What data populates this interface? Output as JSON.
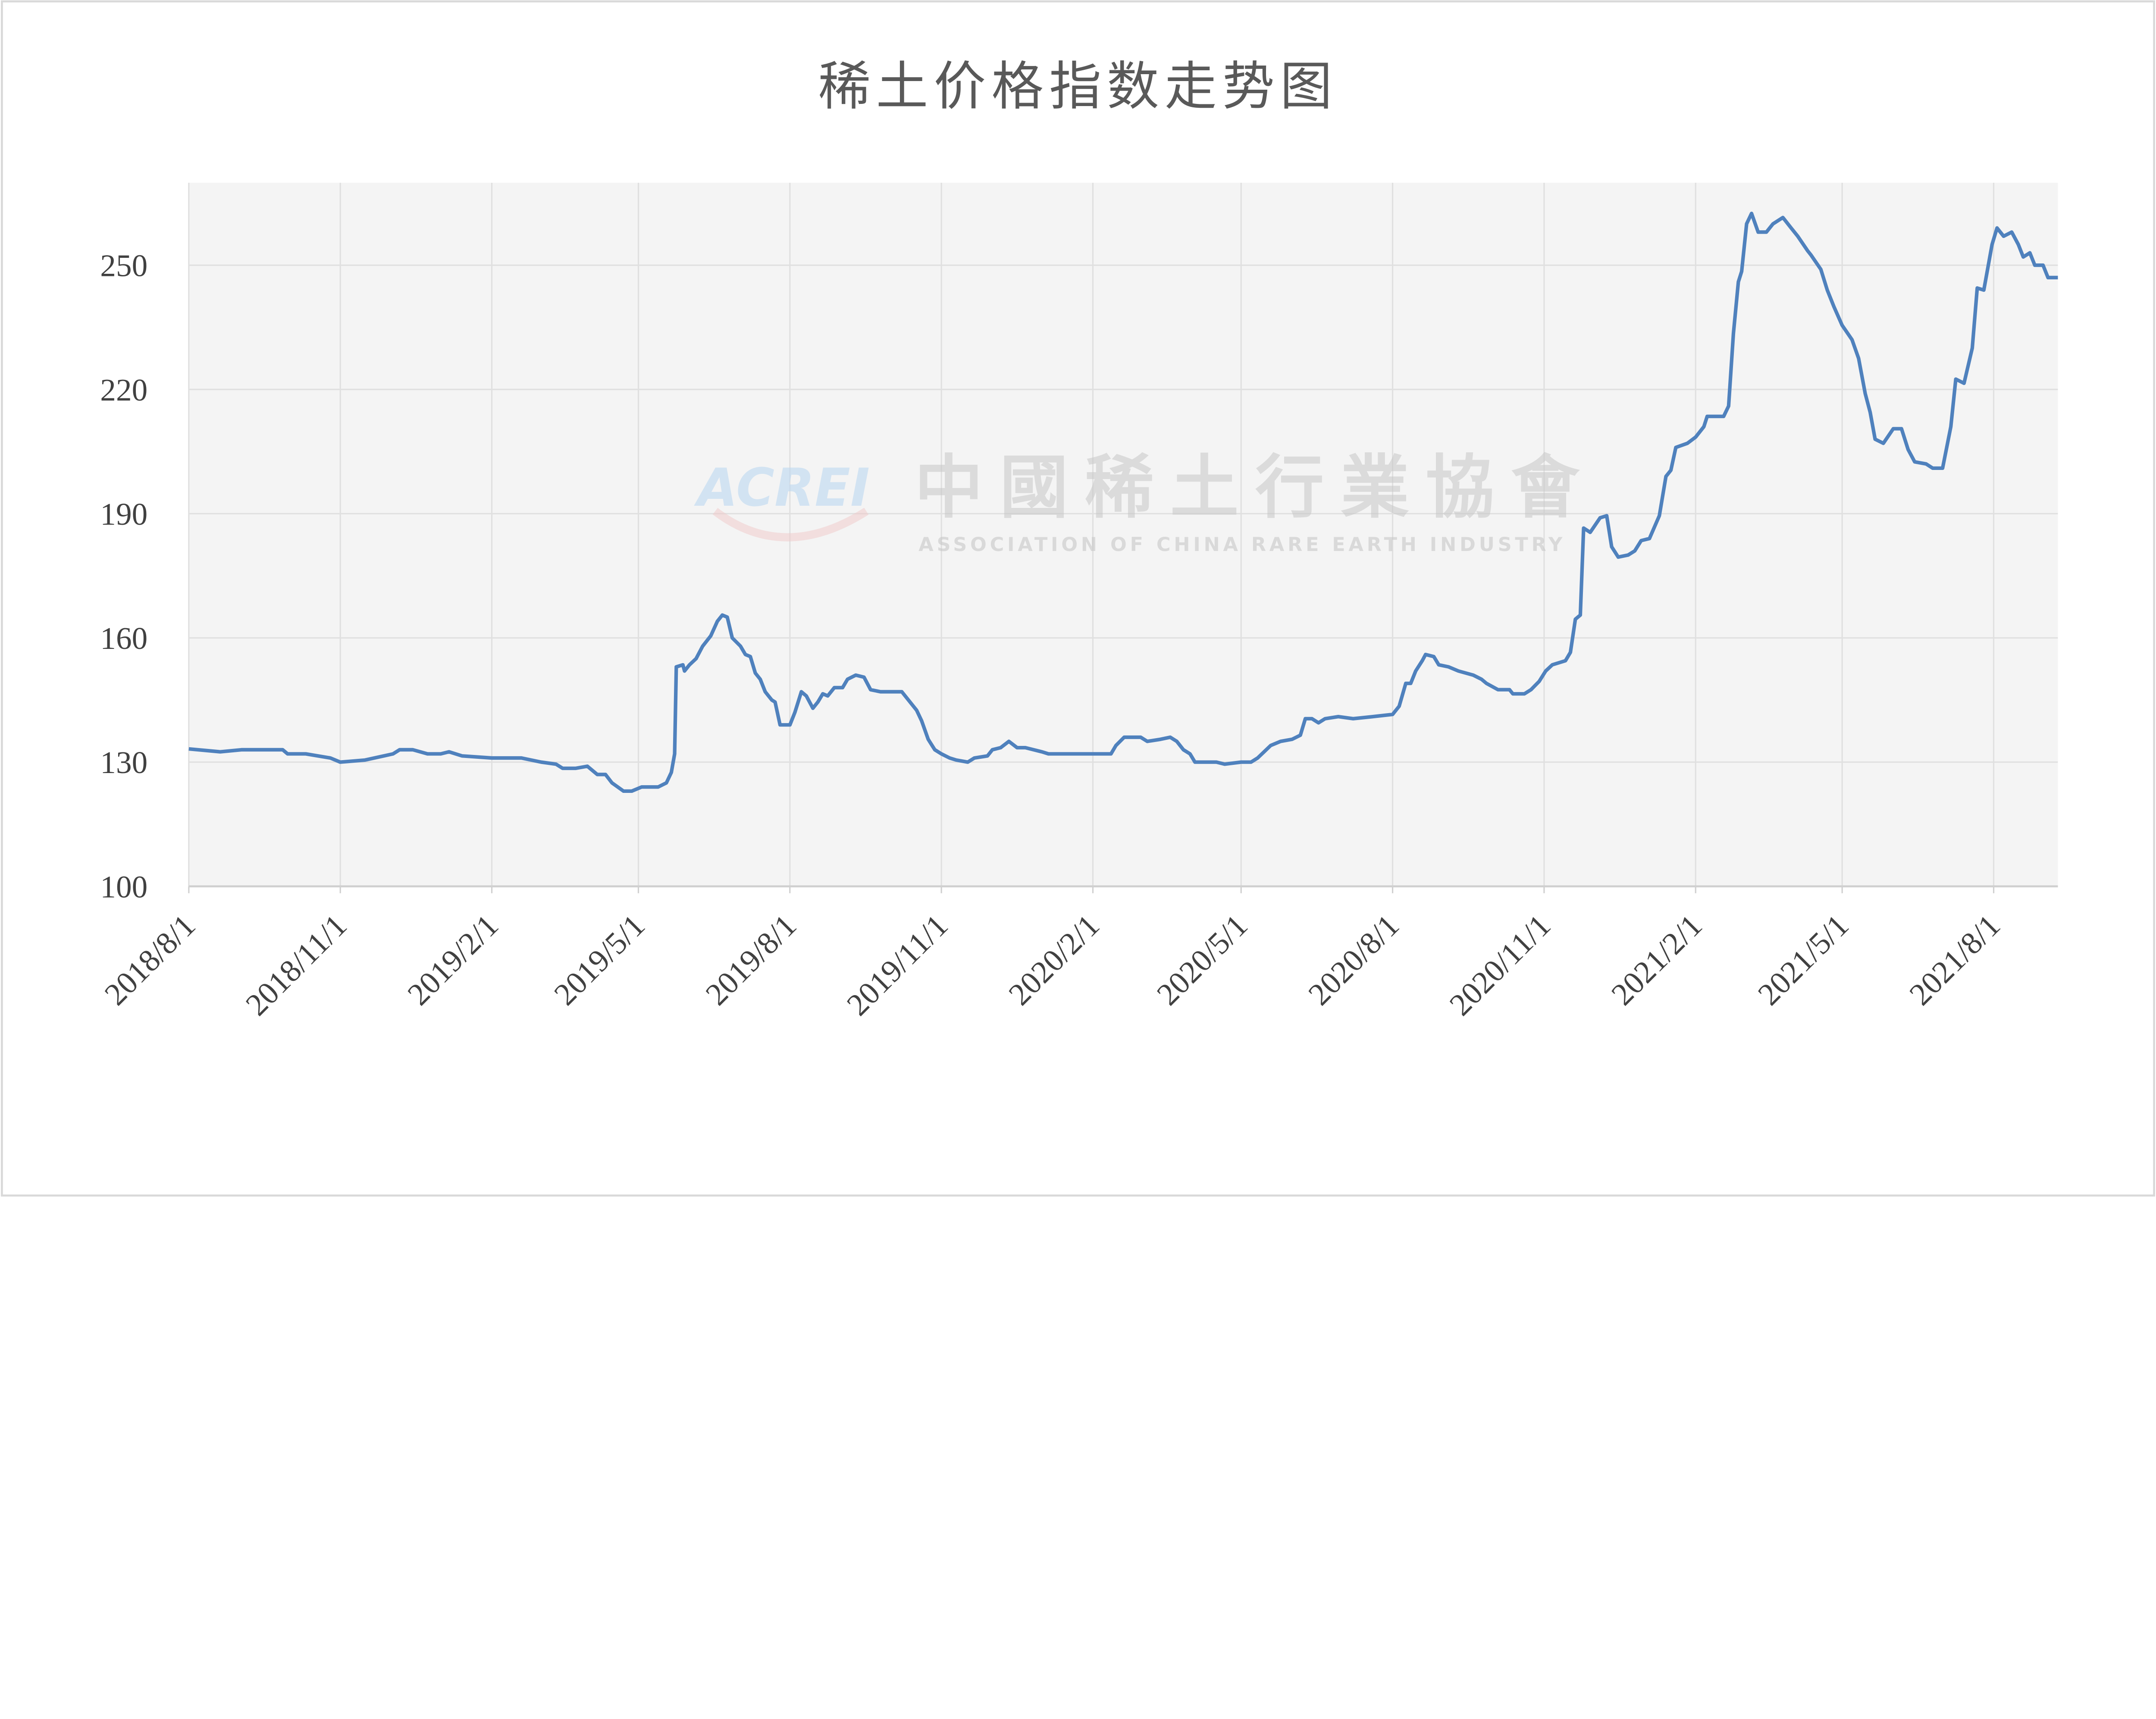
{
  "chart_data": {
    "type": "line",
    "title": "稀土价格指数走势图",
    "xlabel": "",
    "ylabel": "",
    "ylim": [
      100,
      265
    ],
    "xlim": [
      "2018-08-01",
      "2021-09-09"
    ],
    "yticks": [
      100,
      130,
      160,
      190,
      220,
      250
    ],
    "xticks": [
      "2018/8/1",
      "2018/11/1",
      "2019/2/1",
      "2019/5/1",
      "2019/8/1",
      "2019/11/1",
      "2020/2/1",
      "2020/5/1",
      "2020/8/1",
      "2020/11/1",
      "2021/2/1",
      "2021/5/1",
      "2021/8/1"
    ],
    "grid": true,
    "legend": "none",
    "line_color": "#4f81bd",
    "plot_background": "#f4f4f4",
    "watermark": {
      "logo": "ACREI",
      "name_cn": "中國稀土行業協會",
      "name_en": "ASSOCIATION OF CHINA RARE EARTH INDUSTRY"
    },
    "series": [
      {
        "x": [
          "2018-08-01",
          "2018-08-20",
          "2018-09-02",
          "2018-09-27",
          "2018-09-30",
          "2018-10-11",
          "2018-10-26",
          "2018-11-01",
          "2018-11-16",
          "2018-12-03",
          "2018-12-07",
          "2018-12-15",
          "2018-12-24",
          "2019-01-01",
          "2019-01-06",
          "2019-01-14",
          "2019-02-01",
          "2019-02-19",
          "2019-03-03",
          "2019-03-12",
          "2019-03-16",
          "2019-03-24",
          "2019-03-31",
          "2019-04-06",
          "2019-04-11",
          "2019-04-15",
          "2019-04-22",
          "2019-04-27",
          "2019-05-03",
          "2019-05-13",
          "2019-05-18",
          "2019-05-21",
          "2019-05-23",
          "2019-05-24",
          "2019-05-28",
          "2019-05-29",
          "2019-06-01",
          "2019-06-05",
          "2019-06-09",
          "2019-06-14",
          "2019-06-18",
          "2019-06-21",
          "2019-06-24",
          "2019-06-27",
          "2019-07-02",
          "2019-07-05",
          "2019-07-08",
          "2019-07-11",
          "2019-07-14",
          "2019-07-17",
          "2019-07-21",
          "2019-07-23",
          "2019-07-26",
          "2019-08-01",
          "2019-08-04",
          "2019-08-08",
          "2019-08-11",
          "2019-08-15",
          "2019-08-18",
          "2019-08-21",
          "2019-08-24",
          "2019-08-28",
          "2019-09-02",
          "2019-09-05",
          "2019-09-10",
          "2019-09-15",
          "2019-09-19",
          "2019-09-25",
          "2019-10-08",
          "2019-10-12",
          "2019-10-17",
          "2019-10-20",
          "2019-10-24",
          "2019-10-28",
          "2019-11-01",
          "2019-11-06",
          "2019-11-10",
          "2019-11-17",
          "2019-11-21",
          "2019-11-29",
          "2019-12-02",
          "2019-12-07",
          "2019-12-12",
          "2019-12-17",
          "2019-12-22",
          "2020-01-01",
          "2020-01-05",
          "2020-02-01",
          "2020-02-12",
          "2020-02-15",
          "2020-02-20",
          "2020-03-01",
          "2020-03-05",
          "2020-03-13",
          "2020-03-19",
          "2020-03-23",
          "2020-03-27",
          "2020-03-31",
          "2020-04-03",
          "2020-04-16",
          "2020-04-21",
          "2020-05-01",
          "2020-05-07",
          "2020-05-11",
          "2020-05-15",
          "2020-05-19",
          "2020-05-25",
          "2020-06-01",
          "2020-06-06",
          "2020-06-09",
          "2020-06-13",
          "2020-06-17",
          "2020-06-21",
          "2020-06-29",
          "2020-07-08",
          "2020-07-20",
          "2020-08-01",
          "2020-08-05",
          "2020-08-09",
          "2020-08-12",
          "2020-08-15",
          "2020-08-19",
          "2020-08-21",
          "2020-08-26",
          "2020-08-29",
          "2020-09-04",
          "2020-09-10",
          "2020-09-19",
          "2020-09-24",
          "2020-09-27",
          "2020-10-04",
          "2020-10-11",
          "2020-10-13",
          "2020-10-20",
          "2020-10-24",
          "2020-10-29",
          "2020-11-02",
          "2020-11-06",
          "2020-11-14",
          "2020-11-17",
          "2020-11-20",
          "2020-11-23",
          "2020-11-25",
          "2020-11-29",
          "2020-12-05",
          "2020-12-09",
          "2020-12-12",
          "2020-12-16",
          "2020-12-22",
          "2020-12-26",
          "2020-12-30",
          "2021-01-04",
          "2021-01-10",
          "2021-01-14",
          "2021-01-17",
          "2021-01-20",
          "2021-01-27",
          "2021-02-01",
          "2021-02-06",
          "2021-02-08",
          "2021-02-18",
          "2021-02-21",
          "2021-02-24",
          "2021-02-27",
          "2021-03-01",
          "2021-03-04",
          "2021-03-07",
          "2021-03-11",
          "2021-03-16",
          "2021-03-20",
          "2021-03-26",
          "2021-03-31",
          "2021-04-04",
          "2021-04-10",
          "2021-04-12",
          "2021-04-18",
          "2021-04-22",
          "2021-04-26",
          "2021-05-01",
          "2021-05-07",
          "2021-05-11",
          "2021-05-15",
          "2021-05-18",
          "2021-05-21",
          "2021-05-26",
          "2021-06-01",
          "2021-06-06",
          "2021-06-10",
          "2021-06-14",
          "2021-06-21",
          "2021-06-25",
          "2021-07-01",
          "2021-07-06",
          "2021-07-09",
          "2021-07-14",
          "2021-07-19",
          "2021-07-22",
          "2021-07-26",
          "2021-07-31",
          "2021-08-03",
          "2021-08-07",
          "2021-08-12",
          "2021-08-16",
          "2021-08-19",
          "2021-08-23",
          "2021-08-26",
          "2021-08-31",
          "2021-09-03",
          "2021-09-09"
        ],
        "y": [
          133.2,
          132.5,
          133,
          133,
          132,
          132,
          131,
          130,
          130.5,
          132,
          133,
          133,
          132,
          132,
          132.5,
          131.5,
          131,
          131,
          130,
          129.5,
          128.5,
          128.5,
          129,
          127,
          127,
          125,
          123,
          123,
          124,
          124,
          125,
          127.5,
          132,
          153,
          153.5,
          152,
          153.5,
          155,
          158,
          160.5,
          164,
          165.5,
          165,
          160,
          158,
          156,
          155.5,
          151.5,
          150,
          147,
          145,
          144.5,
          139,
          139,
          142,
          147,
          146,
          143,
          144.5,
          146.5,
          146,
          148,
          148,
          150,
          151,
          150.5,
          147.5,
          147,
          147,
          145,
          142.5,
          140,
          135.5,
          133,
          132,
          131,
          130.5,
          130,
          131,
          131.5,
          133,
          133.5,
          135,
          133.5,
          133.5,
          132.5,
          132,
          132,
          132,
          134,
          136,
          136,
          135,
          135.5,
          136,
          135,
          133,
          132,
          130,
          130,
          129.5,
          130,
          130,
          131,
          132.5,
          134,
          135,
          135.5,
          136.5,
          140.5,
          140.5,
          139.5,
          140.5,
          141,
          140.5,
          141,
          141.5,
          143.5,
          149,
          149,
          152,
          154.5,
          156,
          155.5,
          153.5,
          153,
          152,
          151,
          150,
          149,
          147.5,
          147.5,
          146.5,
          146.5,
          147.5,
          149.5,
          152,
          153.5,
          154.5,
          156.5,
          164.5,
          165.5,
          186.5,
          185.5,
          189,
          189.5,
          182,
          179.5,
          180,
          181,
          183.5,
          184,
          189.5,
          199,
          200.5,
          206,
          207,
          208.5,
          211,
          213.5,
          213.5,
          216,
          233.5,
          246,
          248.5,
          260,
          262.5,
          258,
          258,
          260,
          261.5,
          259,
          257,
          253.5,
          252.5,
          249,
          244,
          240,
          235.5,
          232,
          227.5,
          219,
          214.5,
          208,
          207,
          210.5,
          210.5,
          205.5,
          202.5,
          202,
          201,
          201,
          211,
          222.5,
          221.5,
          230,
          244.5,
          244,
          255,
          259,
          257,
          258,
          255,
          252,
          253,
          250,
          250,
          247,
          247
        ]
      }
    ]
  }
}
